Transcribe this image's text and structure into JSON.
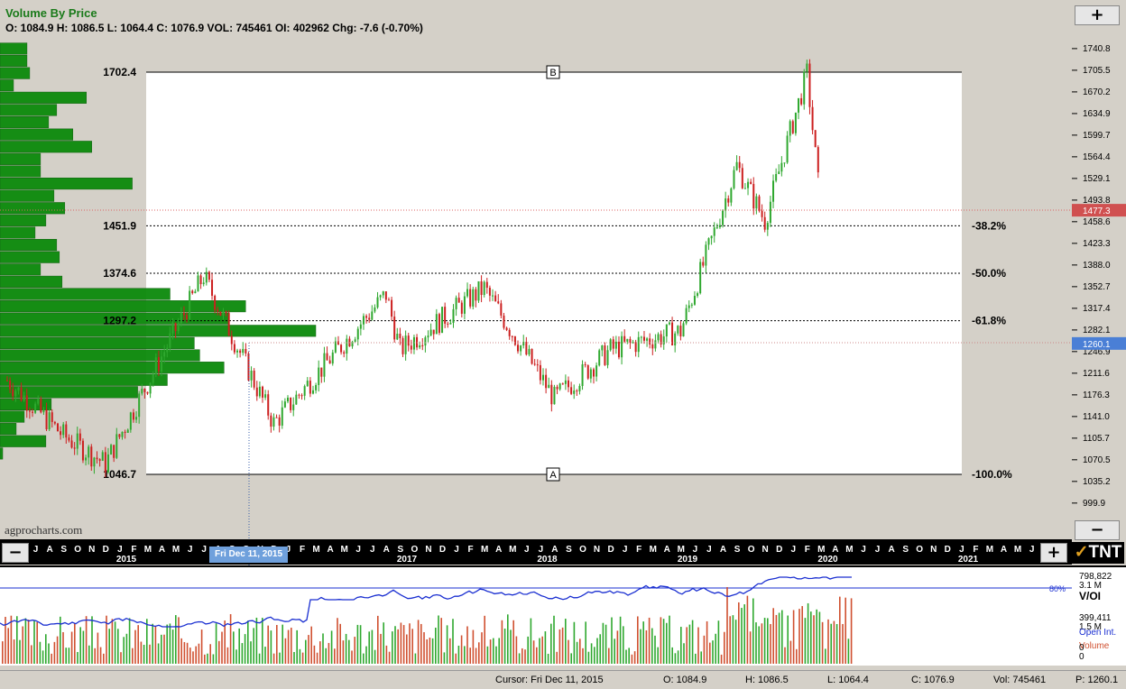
{
  "header": {
    "title": "Volume By Price",
    "ohlc_line": "O: 1084.9  H: 1086.5  L: 1064.4  C: 1076.9  VOL: 745461  OI: 402962  Chg: -7.6 (-0.70%)"
  },
  "watermark": "agprocharts.com",
  "buttons": {
    "zoom_in": "+",
    "zoom_out": "−",
    "scroll_left": "−",
    "scroll_right": "+"
  },
  "logo": {
    "text": "TNT",
    "mark": "✓"
  },
  "cursor_date_tag": "Fri Dec 11, 2015",
  "status_bar": {
    "cursor": "Cursor: Fri Dec 11, 2015",
    "open": "O: 1084.9",
    "high": "H: 1086.5",
    "low": "L: 1064.4",
    "close": "C: 1076.9",
    "volume": "Vol: 745461",
    "price": "P: 1260.1"
  },
  "colors": {
    "up": "#2fa82f",
    "down": "#cc1f1f",
    "vbp": "#0b8a0b",
    "oi_line": "#1a2fd1",
    "price_tag": "#d05050",
    "cursor_tag": "#4a7fd6",
    "plot_bg": "#ffffff",
    "frame_bg": "#d4d0c8"
  },
  "chart_data": [
    {
      "type": "candlestick",
      "title": "Volume By Price",
      "ylim": [
        1000,
        1760
      ],
      "y_ticks": [
        "1740.8",
        "1705.5",
        "1670.2",
        "1634.9",
        "1599.7",
        "1564.4",
        "1529.1",
        "1493.8",
        "1458.6",
        "1423.3",
        "1388.0",
        "1352.7",
        "1317.4",
        "1282.1",
        "1246.9",
        "1211.6",
        "1176.3",
        "1141.0",
        "1105.7",
        "1070.5",
        "1035.2",
        "999.9"
      ],
      "last_price_tag": "1477.3",
      "cursor_price_tag": "1260.1",
      "fib_levels": [
        {
          "price": 1702.4,
          "label_left": "1702.4",
          "label_right": "",
          "point": "B"
        },
        {
          "price": 1451.9,
          "label_left": "1451.9",
          "label_right": "-38.2%"
        },
        {
          "price": 1374.6,
          "label_left": "1374.6",
          "label_right": "-50.0%"
        },
        {
          "price": 1297.2,
          "label_left": "1297.2",
          "label_right": "-61.8%"
        },
        {
          "price": 1046.7,
          "label_left": "1046.7",
          "label_right": "-100.0%",
          "point": "A"
        }
      ],
      "x_axis": {
        "months": [
          "J",
          "J",
          "A",
          "S",
          "O",
          "N",
          "D",
          "J",
          "F",
          "M",
          "A",
          "M",
          "J",
          "J",
          "A",
          "S",
          "O",
          "N",
          "D",
          "J",
          "F",
          "M",
          "A",
          "M",
          "J",
          "J",
          "A",
          "S",
          "O",
          "N",
          "D",
          "J",
          "F",
          "M",
          "A",
          "M",
          "J",
          "J",
          "A",
          "S",
          "O",
          "N",
          "D",
          "J",
          "F",
          "M",
          "A",
          "M",
          "J",
          "J",
          "A",
          "S",
          "O",
          "N",
          "D",
          "J",
          "F",
          "M",
          "A",
          "M",
          "J",
          "J",
          "A",
          "S",
          "O",
          "N",
          "D",
          "J",
          "F",
          "M",
          "A",
          "M",
          "J"
        ],
        "years": [
          "2015",
          "2016",
          "2017",
          "2018",
          "2019",
          "2020",
          "2021"
        ]
      },
      "key_prices": [
        {
          "date": "2015-05",
          "price": 1200
        },
        {
          "date": "2015-09",
          "price": 1110
        },
        {
          "date": "2015-12",
          "price": 1064
        },
        {
          "date": "2016-07",
          "price": 1370
        },
        {
          "date": "2016-12",
          "price": 1130
        },
        {
          "date": "2017-08",
          "price": 1340
        },
        {
          "date": "2017-09",
          "price": 1250
        },
        {
          "date": "2018-03",
          "price": 1350
        },
        {
          "date": "2018-08",
          "price": 1170
        },
        {
          "date": "2018-12",
          "price": 1250
        },
        {
          "date": "2019-05",
          "price": 1280
        },
        {
          "date": "2019-09",
          "price": 1550
        },
        {
          "date": "2019-11",
          "price": 1460
        },
        {
          "date": "2020-02",
          "price": 1700
        },
        {
          "date": "2020-03",
          "price": 1477
        }
      ],
      "volume_by_price": [
        {
          "price": 1740,
          "volume": 10
        },
        {
          "price": 1720,
          "volume": 10
        },
        {
          "price": 1700,
          "volume": 11
        },
        {
          "price": 1680,
          "volume": 5
        },
        {
          "price": 1660,
          "volume": 32
        },
        {
          "price": 1640,
          "volume": 21
        },
        {
          "price": 1620,
          "volume": 18
        },
        {
          "price": 1600,
          "volume": 27
        },
        {
          "price": 1580,
          "volume": 34
        },
        {
          "price": 1560,
          "volume": 15
        },
        {
          "price": 1540,
          "volume": 15
        },
        {
          "price": 1520,
          "volume": 49
        },
        {
          "price": 1500,
          "volume": 20
        },
        {
          "price": 1480,
          "volume": 24
        },
        {
          "price": 1460,
          "volume": 17
        },
        {
          "price": 1440,
          "volume": 13
        },
        {
          "price": 1420,
          "volume": 21
        },
        {
          "price": 1400,
          "volume": 22
        },
        {
          "price": 1380,
          "volume": 15
        },
        {
          "price": 1360,
          "volume": 23
        },
        {
          "price": 1340,
          "volume": 63
        },
        {
          "price": 1320,
          "volume": 91
        },
        {
          "price": 1300,
          "volume": 85
        },
        {
          "price": 1280,
          "volume": 117
        },
        {
          "price": 1260,
          "volume": 72
        },
        {
          "price": 1240,
          "volume": 74
        },
        {
          "price": 1220,
          "volume": 83
        },
        {
          "price": 1200,
          "volume": 62
        },
        {
          "price": 1180,
          "volume": 51
        },
        {
          "price": 1160,
          "volume": 19
        },
        {
          "price": 1140,
          "volume": 9
        },
        {
          "price": 1120,
          "volume": 6
        },
        {
          "price": 1100,
          "volume": 17
        },
        {
          "price": 1080,
          "volume": 1
        }
      ]
    },
    {
      "type": "bar",
      "title": "V/OI",
      "legend": [
        "Open Int.",
        "Volume"
      ],
      "y_ticks": [
        "798,822",
        "3.1 M",
        "399,411",
        "1.5 M",
        "0",
        "0"
      ],
      "reference_line": {
        "label": "80%"
      }
    }
  ]
}
